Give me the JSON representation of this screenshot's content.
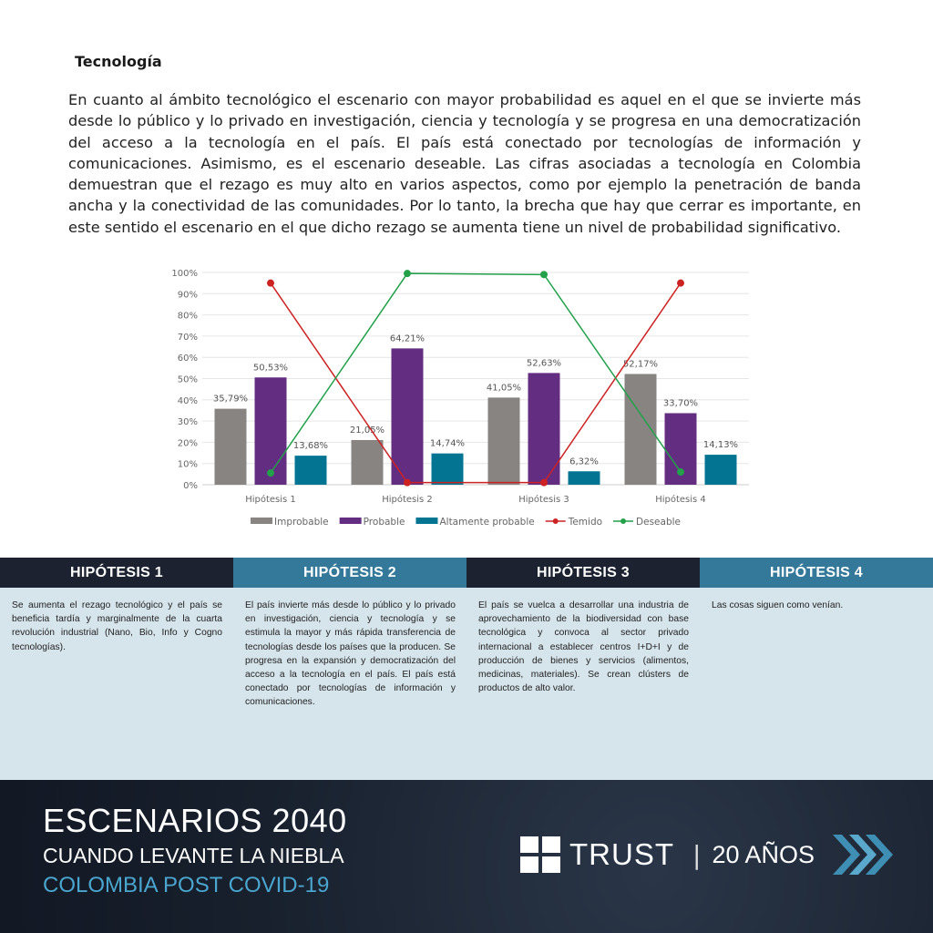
{
  "heading": "Tecnología",
  "paragraph": "En cuanto al ámbito tecnológico el escenario con mayor probabilidad es aquel en el que se invierte más desde lo público y lo privado en investigación, ciencia y tecnología y se progresa en una democratización del acceso a la tecnología en el país. El país está conectado por tecnologías de información y comunicaciones. Asimismo, es el escenario deseable. Las cifras asociadas a tecnología en Colombia demuestran que el rezago es muy alto en varios aspectos, como por ejemplo la penetración de banda ancha y la conectividad de las comunidades. Por lo tanto, la brecha que hay que cerrar es importante, en este sentido el escenario en el que dicho rezago se aumenta tiene un nivel de probabilidad significativo.",
  "chart_data": {
    "type": "bar+line",
    "categories": [
      "Hipótesis 1",
      "Hipótesis 2",
      "Hipótesis 3",
      "Hipótesis 4"
    ],
    "ylim": [
      0,
      100
    ],
    "yticks": [
      "0%",
      "10%",
      "20%",
      "30%",
      "40%",
      "50%",
      "60%",
      "70%",
      "80%",
      "90%",
      "100%"
    ],
    "grid": true,
    "legend": "bottom",
    "series": [
      {
        "name": "Improbable",
        "kind": "bar",
        "color": "#878482",
        "values": [
          35.79,
          21.05,
          41.05,
          52.17
        ],
        "labels": [
          "35,79%",
          "21,05%",
          "41,05%",
          "52,17%"
        ]
      },
      {
        "name": "Probable",
        "kind": "bar",
        "color": "#632d82",
        "values": [
          50.53,
          64.21,
          52.63,
          33.7
        ],
        "labels": [
          "50,53%",
          "64,21%",
          "52,63%",
          "33,70%"
        ]
      },
      {
        "name": "Altamente probable",
        "kind": "bar",
        "color": "#037592",
        "values": [
          13.68,
          14.74,
          6.32,
          14.13
        ],
        "labels": [
          "13,68%",
          "14,74%",
          "6,32%",
          "14,13%"
        ]
      },
      {
        "name": "Temido",
        "kind": "line",
        "color": "#cc2222",
        "values": [
          95,
          1,
          1,
          95
        ]
      },
      {
        "name": "Deseable",
        "kind": "line",
        "color": "#22a04a",
        "values": [
          5.5,
          99.5,
          99,
          6
        ]
      }
    ]
  },
  "table": [
    {
      "title": "HIPÓTESIS 1",
      "text": "Se aumenta el rezago tecnológico y el país se beneficia tardía y marginalmente de la cuarta revolución industrial (Nano, Bio, Info y Cogno tecnologías)."
    },
    {
      "title": "HIPÓTESIS 2",
      "text": "El país invierte más desde lo público y lo privado en investigación, ciencia y tecnología y se estimula la mayor y más rápida transferencia de tecnologías desde los países que la producen. Se progresa en la expansión y democratización del acceso a la tecnología en el país. El país está conectado por tecnologías de información y comunicaciones."
    },
    {
      "title": "HIPÓTESIS 3",
      "text": "El país se vuelca a desarrollar una industria de aprovechamiento de la biodiversidad con base tecnológica y convoca al sector privado internacional a establecer centros I+D+I y de producción de bienes y servicios (alimentos, medicinas, materiales). Se crean clústers de productos de alto valor."
    },
    {
      "title": "HIPÓTESIS 4",
      "text": "Las cosas siguen como venían."
    }
  ],
  "footer": {
    "line1": "ESCENARIOS 2040",
    "line2": "CUANDO LEVANTE LA NIEBLA",
    "line3": "COLOMBIA POST COVID-19",
    "brand": "TRUST",
    "separator": "|",
    "years": "20 AÑOS"
  }
}
